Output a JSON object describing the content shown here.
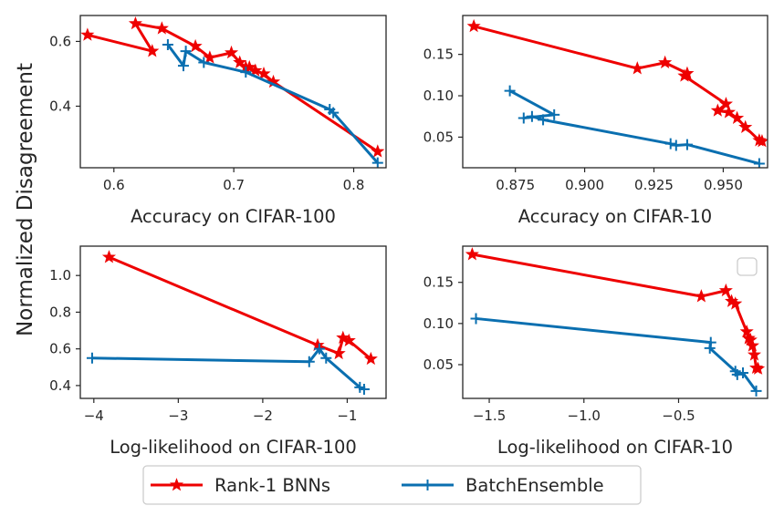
{
  "ylabel": "Normalized Disagreement",
  "colors": {
    "rank1": "#ee0000",
    "batchensemble": "#0a6fb0",
    "axes": "#262626"
  },
  "legend": {
    "entries": [
      {
        "name": "Rank-1 BNNs",
        "color": "#ee0000",
        "marker": "star"
      },
      {
        "name": "BatchEnsemble",
        "color": "#0a6fb0",
        "marker": "plus"
      }
    ]
  },
  "chart_data": [
    {
      "type": "line",
      "xlabel": "Accuracy on CIFAR-100",
      "xlim": [
        0.572,
        0.827
      ],
      "ylim": [
        0.21,
        0.68
      ],
      "xticks": [
        0.6,
        0.7,
        0.8
      ],
      "xtick_labels": [
        "0.6",
        "0.7",
        "0.8"
      ],
      "yticks": [
        0.4,
        0.6
      ],
      "ytick_labels": [
        "0.4",
        "0.6"
      ],
      "series": [
        {
          "name": "Rank-1 BNNs",
          "marker": "star",
          "x": [
            0.578,
            0.632,
            0.618,
            0.64,
            0.668,
            0.68,
            0.698,
            0.705,
            0.71,
            0.713,
            0.718,
            0.725,
            0.733,
            0.82
          ],
          "y": [
            0.62,
            0.57,
            0.655,
            0.64,
            0.585,
            0.55,
            0.565,
            0.535,
            0.52,
            0.52,
            0.51,
            0.5,
            0.475,
            0.26
          ]
        },
        {
          "name": "BatchEnsemble",
          "marker": "plus",
          "x": [
            0.645,
            0.658,
            0.66,
            0.675,
            0.71,
            0.78,
            0.783,
            0.82
          ],
          "y": [
            0.59,
            0.525,
            0.57,
            0.535,
            0.505,
            0.39,
            0.38,
            0.225
          ]
        }
      ]
    },
    {
      "type": "line",
      "xlabel": "Accuracy on CIFAR-10",
      "xlim": [
        0.856,
        0.966
      ],
      "ylim": [
        0.013,
        0.197
      ],
      "xticks": [
        0.875,
        0.9,
        0.925,
        0.95
      ],
      "xtick_labels": [
        "0.875",
        "0.900",
        "0.925",
        "0.950"
      ],
      "yticks": [
        0.05,
        0.1,
        0.15
      ],
      "ytick_labels": [
        "0.05",
        "0.10",
        "0.15"
      ],
      "series": [
        {
          "name": "Rank-1 BNNs",
          "marker": "star",
          "x": [
            0.86,
            0.919,
            0.929,
            0.937,
            0.936,
            0.951,
            0.948,
            0.952,
            0.955,
            0.958,
            0.963,
            0.964
          ],
          "y": [
            0.184,
            0.133,
            0.14,
            0.127,
            0.124,
            0.09,
            0.082,
            0.08,
            0.073,
            0.062,
            0.046,
            0.045
          ]
        },
        {
          "name": "BatchEnsemble",
          "marker": "plus",
          "x": [
            0.873,
            0.889,
            0.878,
            0.881,
            0.885,
            0.931,
            0.933,
            0.937,
            0.963
          ],
          "y": [
            0.106,
            0.077,
            0.073,
            0.075,
            0.071,
            0.042,
            0.04,
            0.041,
            0.018
          ]
        }
      ]
    },
    {
      "type": "line",
      "xlabel": "Log-likelihood on CIFAR-100",
      "xlim": [
        -4.16,
        -0.54
      ],
      "ylim": [
        0.33,
        1.16
      ],
      "xticks": [
        -4,
        -3,
        -2,
        -1
      ],
      "xtick_labels": [
        "−4",
        "−3",
        "−2",
        "−1"
      ],
      "yticks": [
        0.4,
        0.6,
        0.8,
        1.0
      ],
      "ytick_labels": [
        "0.4",
        "0.6",
        "0.8",
        "1.0"
      ],
      "series": [
        {
          "name": "Rank-1 BNNs",
          "marker": "star",
          "x": [
            -3.82,
            -1.35,
            -1.1,
            -1.05,
            -0.98,
            -0.72
          ],
          "y": [
            1.1,
            0.62,
            0.575,
            0.66,
            0.645,
            0.545
          ]
        },
        {
          "name": "BatchEnsemble",
          "marker": "plus",
          "x": [
            -4.02,
            -1.45,
            -1.33,
            -1.25,
            -0.85,
            -0.8
          ],
          "y": [
            0.55,
            0.53,
            0.6,
            0.55,
            0.39,
            0.38
          ]
        }
      ]
    },
    {
      "type": "line",
      "xlabel": "Log-likelihood on CIFAR-10",
      "xlim": [
        -1.64,
        -0.03
      ],
      "ylim": [
        0.009,
        0.194
      ],
      "xticks": [
        -1.5,
        -1.0,
        -0.5
      ],
      "xtick_labels": [
        "−1.5",
        "−1.0",
        "−0.5"
      ],
      "yticks": [
        0.05,
        0.1,
        0.15
      ],
      "ytick_labels": [
        "0.05",
        "0.10",
        "0.15"
      ],
      "series": [
        {
          "name": "Rank-1 BNNs",
          "marker": "star",
          "x": [
            -1.59,
            -0.38,
            -0.25,
            -0.22,
            -0.2,
            -0.14,
            -0.13,
            -0.12,
            -0.11,
            -0.1,
            -0.09,
            -0.08
          ],
          "y": [
            0.184,
            0.133,
            0.14,
            0.127,
            0.124,
            0.09,
            0.082,
            0.08,
            0.073,
            0.062,
            0.046,
            0.045
          ]
        },
        {
          "name": "BatchEnsemble",
          "marker": "plus",
          "x": [
            -1.57,
            -0.33,
            -0.335,
            -0.2,
            -0.19,
            -0.16,
            -0.09
          ],
          "y": [
            0.106,
            0.077,
            0.07,
            0.042,
            0.038,
            0.04,
            0.018
          ]
        }
      ]
    }
  ]
}
